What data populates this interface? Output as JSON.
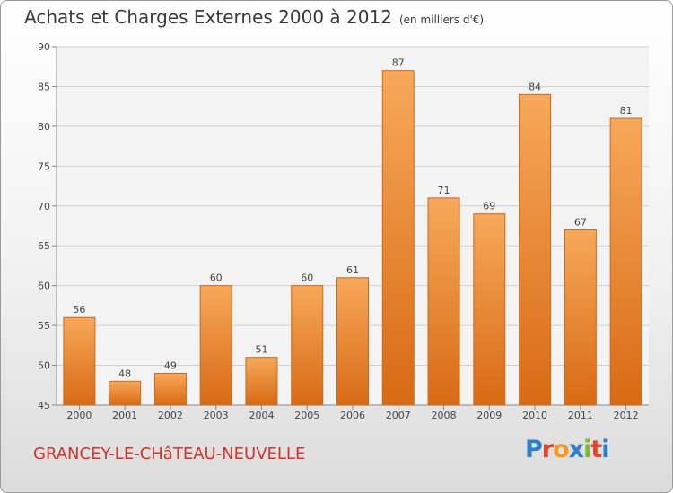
{
  "title": "Achats et Charges Externes 2000 à 2012",
  "subtitle": "(en milliers d'€)",
  "commune": "GRANCEY-LE-CHâTEAU-NEUVELLE",
  "logo": {
    "letters": [
      "P",
      "r",
      "o",
      "x",
      "i",
      "t",
      "i"
    ],
    "colors": [
      "#2c7fc8",
      "#e8412c",
      "#f29b1d",
      "#2c7fc8",
      "#7dba2f",
      "#e8412c",
      "#2c7fc8"
    ]
  },
  "chart_data": {
    "type": "bar",
    "categories": [
      "2000",
      "2001",
      "2002",
      "2003",
      "2004",
      "2005",
      "2006",
      "2007",
      "2008",
      "2009",
      "2010",
      "2011",
      "2012"
    ],
    "values": [
      56,
      48,
      49,
      60,
      51,
      60,
      61,
      87,
      71,
      69,
      84,
      67,
      81
    ],
    "title": "Achats et Charges Externes 2000 à 2012",
    "ylim": [
      45,
      90
    ],
    "yticks": [
      45,
      50,
      55,
      60,
      65,
      70,
      75,
      80,
      85,
      90
    ],
    "grid": true,
    "bar_color": "#f0923a"
  }
}
